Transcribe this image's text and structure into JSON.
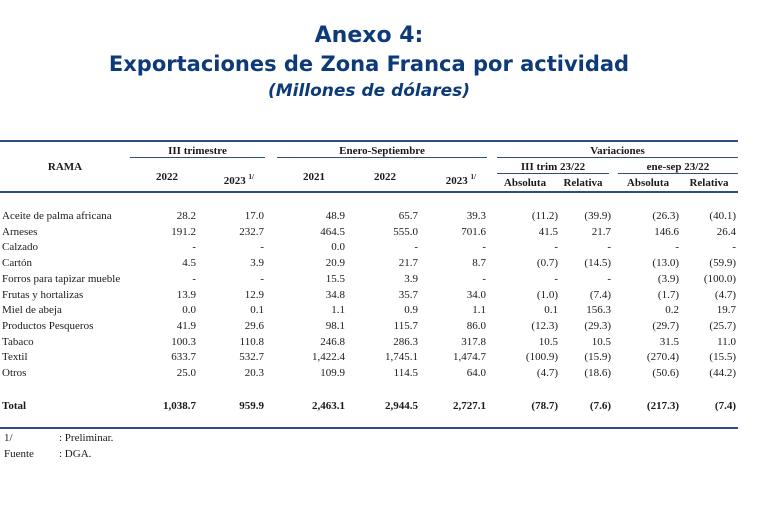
{
  "title": {
    "line1": "Anexo 4:",
    "line2": "Exportaciones de Zona Franca por actividad",
    "line3": "(Millones de dólares)"
  },
  "header": {
    "rama": "RAMA",
    "group_trimestre": "III trimestre",
    "group_enero": "Enero-Septiembre",
    "group_variaciones": "Variaciones",
    "sub_trim": "III trim 23/22",
    "sub_enesep": "ene-sep 23/22",
    "y2022": "2022",
    "y2023": "2023",
    "sup": "1/",
    "y2021": "2021",
    "y2022b": "2022",
    "y2023b": "2023",
    "absoluta": "Absoluta",
    "relativa": "Relativa",
    "absoluta2": "Absoluta",
    "relativa2": "Relativa"
  },
  "rows": [
    {
      "rama": "Aceite de palma africana",
      "v": [
        "28.2",
        "17.0",
        "48.9",
        "65.7",
        "39.3",
        "(11.2)",
        "(39.9)",
        "(26.3)",
        "(40.1)"
      ]
    },
    {
      "rama": "Arneses",
      "v": [
        "191.2",
        "232.7",
        "464.5",
        "555.0",
        "701.6",
        "41.5",
        "21.7",
        "146.6",
        "26.4"
      ]
    },
    {
      "rama": "Calzado",
      "v": [
        "-",
        "-",
        "0.0",
        "-",
        "-",
        "-",
        "-",
        "-",
        "-"
      ]
    },
    {
      "rama": "Cartón",
      "v": [
        "4.5",
        "3.9",
        "20.9",
        "21.7",
        "8.7",
        "(0.7)",
        "(14.5)",
        "(13.0)",
        "(59.9)"
      ]
    },
    {
      "rama": "Forros para tapizar mueble",
      "v": [
        "-",
        "-",
        "15.5",
        "3.9",
        "-",
        "-",
        "-",
        "(3.9)",
        "(100.0)"
      ]
    },
    {
      "rama": "Frutas y hortalizas",
      "v": [
        "13.9",
        "12.9",
        "34.8",
        "35.7",
        "34.0",
        "(1.0)",
        "(7.4)",
        "(1.7)",
        "(4.7)"
      ]
    },
    {
      "rama": "Miel de abeja",
      "v": [
        "0.0",
        "0.1",
        "1.1",
        "0.9",
        "1.1",
        "0.1",
        "156.3",
        "0.2",
        "19.7"
      ]
    },
    {
      "rama": "Productos Pesqueros",
      "v": [
        "41.9",
        "29.6",
        "98.1",
        "115.7",
        "86.0",
        "(12.3)",
        "(29.3)",
        "(29.7)",
        "(25.7)"
      ]
    },
    {
      "rama": "Tabaco",
      "v": [
        "100.3",
        "110.8",
        "246.8",
        "286.3",
        "317.8",
        "10.5",
        "10.5",
        "31.5",
        "11.0"
      ]
    },
    {
      "rama": "Textil",
      "v": [
        "633.7",
        "532.7",
        "1,422.4",
        "1,745.1",
        "1,474.7",
        "(100.9)",
        "(15.9)",
        "(270.4)",
        "(15.5)"
      ]
    },
    {
      "rama": "Otros",
      "v": [
        "25.0",
        "20.3",
        "109.9",
        "114.5",
        "64.0",
        "(4.7)",
        "(18.6)",
        "(50.6)",
        "(44.2)"
      ]
    }
  ],
  "total": {
    "rama": "Total",
    "v": [
      "1,038.7",
      "959.9",
      "2,463.1",
      "2,944.5",
      "2,727.1",
      "(78.7)",
      "(7.6)",
      "(217.3)",
      "(7.4)"
    ]
  },
  "notes": [
    {
      "key": "1/",
      "value": ": Preliminar."
    },
    {
      "key": "Fuente",
      "value": ": DGA."
    }
  ]
}
